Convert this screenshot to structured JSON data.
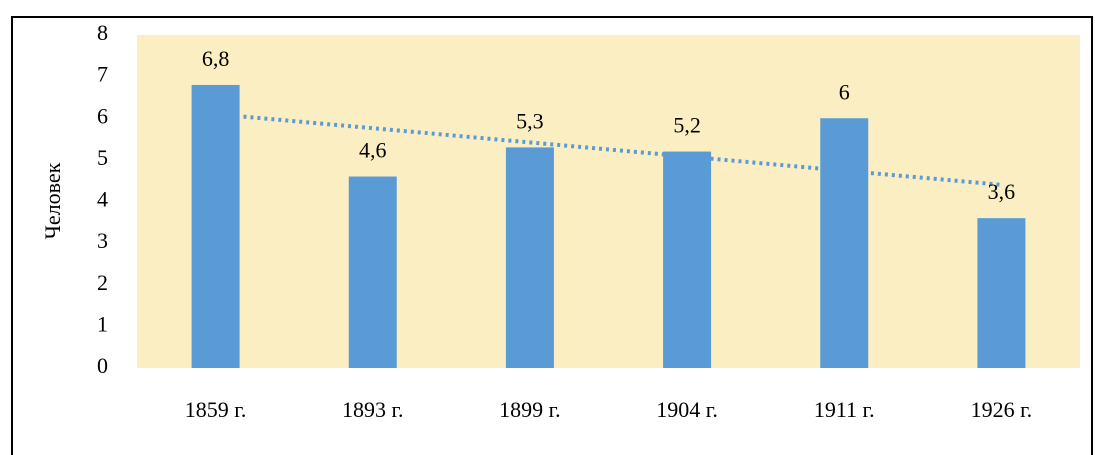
{
  "chart_data": {
    "type": "bar",
    "y_label": "Человек",
    "categories": [
      "1859 г.",
      "1893 г.",
      "1899 г.",
      "1904 г.",
      "1911 г.",
      "1926 г."
    ],
    "values": [
      6.8,
      4.6,
      5.3,
      5.2,
      6,
      3.6
    ],
    "value_labels": [
      "6,8",
      "4,6",
      "5,3",
      "5,2",
      "6",
      "3,6"
    ],
    "color": "#5b9bd5",
    "background": "#fbeec3",
    "ylim": [
      0,
      8
    ],
    "yticks": [
      0,
      1,
      2,
      3,
      4,
      5,
      6,
      7,
      8
    ],
    "grid": false,
    "trendline": "linear"
  }
}
